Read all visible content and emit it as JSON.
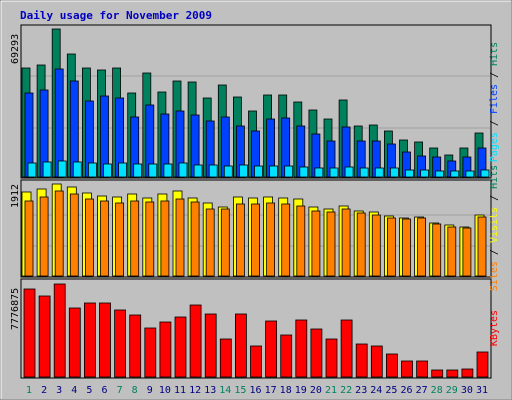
{
  "colors": {
    "background": "#c0c0c0",
    "title": "#0000c0",
    "hits": "#00805c",
    "files": "#0040ff",
    "pages": "#00e0ff",
    "visits": "#ffff00",
    "sites": "#ff8000",
    "kbytes": "#ff0000",
    "weekend_label": "#00805c",
    "weekday_label": "#000080",
    "grid": "#a0a0a0"
  },
  "chart_data": {
    "type": "bar",
    "title": "Daily usage for November 2009",
    "days": [
      "1",
      "2",
      "3",
      "4",
      "5",
      "6",
      "7",
      "8",
      "9",
      "10",
      "11",
      "12",
      "13",
      "14",
      "15",
      "16",
      "17",
      "18",
      "19",
      "20",
      "21",
      "22",
      "23",
      "24",
      "25",
      "26",
      "27",
      "28",
      "29",
      "30",
      "31"
    ],
    "weekend_days": [
      "1",
      "7",
      "8",
      "14",
      "15",
      "21",
      "22",
      "28",
      "29"
    ],
    "panels": [
      {
        "id": "hits-files-pages",
        "ymax_label": "69293",
        "ymax": 69293,
        "legend": [
          "Pages",
          "Files",
          "Hits"
        ],
        "series": [
          {
            "name": "Hits",
            "values": [
              51000,
              52500,
              69293,
              57500,
              51000,
              50000,
              51000,
              39500,
              48500,
              40000,
              45000,
              44500,
              37000,
              43000,
              37500,
              31000,
              38500,
              38500,
              35000,
              31500,
              27000,
              36000,
              24000,
              24500,
              21500,
              17500,
              16500,
              13500,
              10500,
              13500,
              20500
            ]
          },
          {
            "name": "Files",
            "values": [
              39500,
              40500,
              50500,
              45000,
              35500,
              38000,
              37000,
              28000,
              33500,
              29500,
              31000,
              29000,
              26000,
              28000,
              24000,
              21500,
              27000,
              27500,
              24000,
              20000,
              17000,
              23500,
              17000,
              17000,
              15500,
              11500,
              10000,
              9500,
              7500,
              9500,
              13500
            ]
          },
          {
            "name": "Pages",
            "values": [
              6500,
              7000,
              7500,
              7000,
              6500,
              6000,
              6500,
              6000,
              6000,
              6000,
              6500,
              5500,
              5500,
              5000,
              5500,
              5000,
              5000,
              5000,
              4500,
              4000,
              4000,
              4500,
              4000,
              4000,
              4000,
              3500,
              3500,
              3000,
              3000,
              3000,
              3500
            ]
          }
        ]
      },
      {
        "id": "visits-sites",
        "ymax_label": "1912",
        "ymax": 1912,
        "legend": [
          "Sites",
          "Visits",
          "Hits"
        ],
        "series": [
          {
            "name": "Visits",
            "values": [
              1750,
              1800,
              1912,
              1850,
              1720,
              1660,
              1640,
              1700,
              1620,
              1700,
              1760,
              1620,
              1520,
              1440,
              1650,
              1620,
              1640,
              1620,
              1600,
              1440,
              1400,
              1460,
              1360,
              1320,
              1240,
              1200,
              1220,
              1100,
              1050,
              1020,
              1260
            ]
          },
          {
            "name": "Sites",
            "values": [
              1550,
              1650,
              1760,
              1700,
              1600,
              1550,
              1520,
              1560,
              1540,
              1560,
              1600,
              1540,
              1400,
              1400,
              1500,
              1500,
              1520,
              1500,
              1460,
              1360,
              1340,
              1400,
              1300,
              1260,
              1200,
              1180,
              1200,
              1080,
              1020,
              1000,
              1220
            ]
          }
        ]
      },
      {
        "id": "kbytes",
        "ymax_label": "7776875",
        "ymax": 7776875,
        "legend": [
          "KBytes"
        ],
        "series": [
          {
            "name": "KBytes",
            "values": [
              7400000,
              6800000,
              7776875,
              5800000,
              6200000,
              6200000,
              5600000,
              5200000,
              4100000,
              4600000,
              5000000,
              6000000,
              5300000,
              3200000,
              5300000,
              2600000,
              4700000,
              3500000,
              4800000,
              4000000,
              3200000,
              4800000,
              2800000,
              2600000,
              1900000,
              1300000,
              1300000,
              600000,
              600000,
              700000,
              2100000
            ]
          }
        ]
      }
    ]
  }
}
